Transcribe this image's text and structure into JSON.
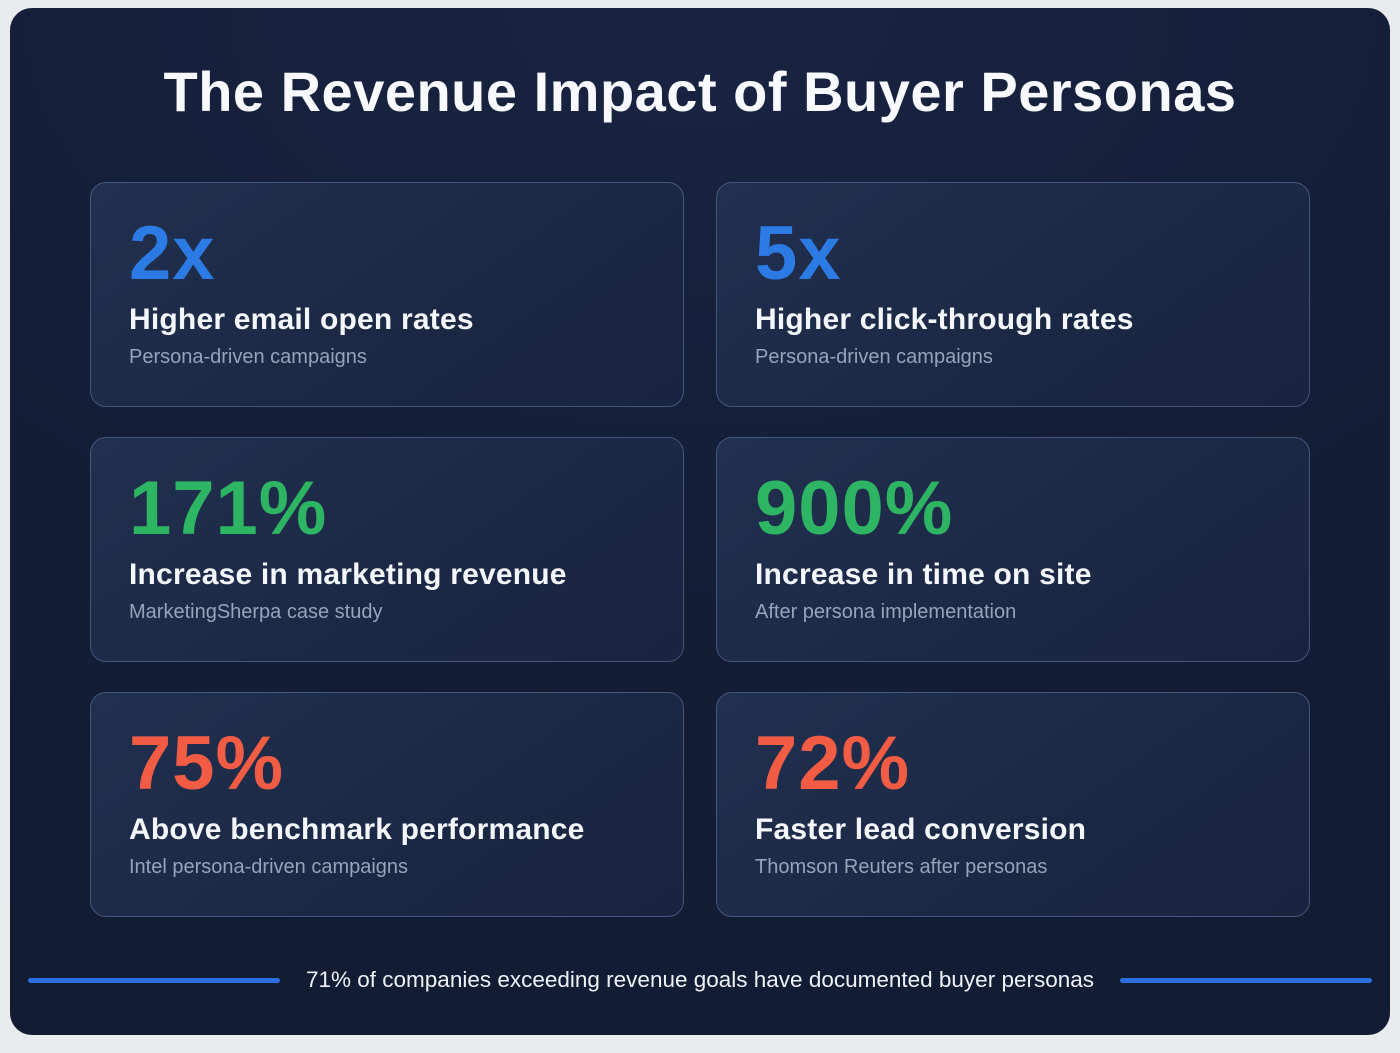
{
  "page": {
    "title": "The Revenue Impact of Buyer Personas",
    "footer": "71% of companies exceeding revenue goals have documented buyer personas"
  },
  "colors": {
    "panel_background": "#141f38",
    "card_background": "#1d2a47",
    "card_border": "#44567d",
    "stat_blue": "#2c7be5",
    "stat_green": "#2eb564",
    "stat_orange": "#f25c44",
    "label_white": "#f3f6fa",
    "sub_gray": "#96a3ba",
    "footer_line_blue": "#2b6fe0"
  },
  "cards": [
    {
      "value": "2x",
      "color": "stat_blue",
      "label": "Higher email open rates",
      "sub": "Persona-driven campaigns"
    },
    {
      "value": "5x",
      "color": "stat_blue",
      "label": "Higher click-through rates",
      "sub": "Persona-driven campaigns"
    },
    {
      "value": "171%",
      "color": "stat_green",
      "label": "Increase in marketing revenue",
      "sub": "MarketingSherpa case study"
    },
    {
      "value": "900%",
      "color": "stat_green",
      "label": "Increase in time on site",
      "sub": "After persona implementation"
    },
    {
      "value": "75%",
      "color": "stat_orange",
      "label": "Above benchmark performance",
      "sub": "Intel persona-driven campaigns"
    },
    {
      "value": "72%",
      "color": "stat_orange",
      "label": "Faster lead conversion",
      "sub": "Thomson Reuters after personas"
    }
  ],
  "chart_data": {
    "type": "table",
    "title": "The Revenue Impact of Buyer Personas",
    "columns": [
      "value",
      "metric",
      "source"
    ],
    "rows": [
      [
        "2x",
        "Higher email open rates",
        "Persona-driven campaigns"
      ],
      [
        "5x",
        "Higher click-through rates",
        "Persona-driven campaigns"
      ],
      [
        "171%",
        "Increase in marketing revenue",
        "MarketingSherpa case study"
      ],
      [
        "900%",
        "Increase in time on site",
        "After persona implementation"
      ],
      [
        "75%",
        "Above benchmark performance",
        "Intel persona-driven campaigns"
      ],
      [
        "72%",
        "Faster lead conversion",
        "Thomson Reuters after personas"
      ]
    ],
    "annotation": "71% of companies exceeding revenue goals have documented buyer personas",
    "legend_position": "none",
    "grid": false
  }
}
